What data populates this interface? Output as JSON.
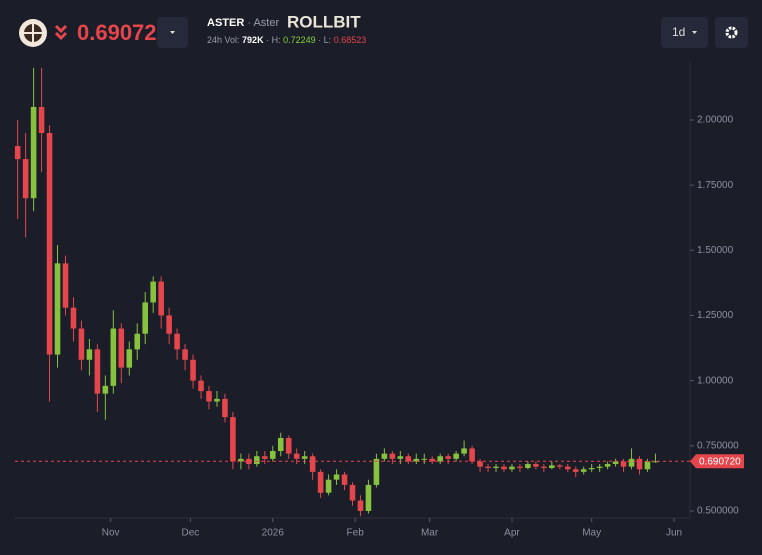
{
  "header": {
    "price": "0.69072",
    "symbol": "ASTER",
    "separator": "·",
    "name": "Aster",
    "brand": "ROLLBIT",
    "vol_label": "24h Vol:",
    "vol": "792K",
    "high_label": "· H:",
    "high": "0.72249",
    "low_label": "· L:",
    "low": "0.68523",
    "interval": "1d"
  },
  "chart_data": {
    "type": "candlestick",
    "x": [
      0,
      3,
      6,
      9,
      12,
      15,
      18,
      21,
      24,
      27,
      30,
      33,
      36,
      39,
      42,
      45,
      48,
      51,
      54,
      57,
      60,
      63,
      66,
      69,
      72,
      75,
      78,
      81,
      84,
      87,
      90,
      93,
      96,
      99,
      102,
      105,
      108,
      111,
      114,
      117,
      120,
      123,
      126,
      129,
      132,
      135,
      138,
      141,
      144,
      147,
      150,
      153,
      156,
      159,
      162,
      165,
      168,
      171,
      174,
      177,
      180,
      183,
      186,
      189,
      192,
      195,
      198,
      201,
      204,
      207,
      210,
      213,
      216,
      219,
      222,
      225,
      228,
      231,
      234,
      237,
      240
    ],
    "open": [
      1.9,
      1.85,
      1.7,
      2.05,
      1.95,
      1.1,
      1.45,
      1.28,
      1.2,
      1.08,
      1.12,
      0.95,
      0.98,
      1.2,
      1.05,
      1.12,
      1.18,
      1.3,
      1.38,
      1.25,
      1.18,
      1.12,
      1.08,
      1.0,
      0.96,
      0.92,
      0.93,
      0.86,
      0.69,
      0.7,
      0.68,
      0.71,
      0.7,
      0.73,
      0.78,
      0.72,
      0.7,
      0.71,
      0.65,
      0.57,
      0.62,
      0.64,
      0.6,
      0.54,
      0.5,
      0.6,
      0.7,
      0.72,
      0.7,
      0.71,
      0.69,
      0.7,
      0.7,
      0.69,
      0.71,
      0.7,
      0.72,
      0.74,
      0.69,
      0.67,
      0.665,
      0.67,
      0.66,
      0.67,
      0.665,
      0.68,
      0.67,
      0.665,
      0.675,
      0.67,
      0.66,
      0.65,
      0.66,
      0.665,
      0.67,
      0.68,
      0.69,
      0.67,
      0.7,
      0.66,
      0.69
    ],
    "high": [
      2.0,
      1.95,
      2.2,
      2.2,
      1.98,
      1.52,
      1.48,
      1.32,
      1.23,
      1.16,
      1.14,
      1.02,
      1.27,
      1.22,
      1.15,
      1.22,
      1.34,
      1.4,
      1.4,
      1.28,
      1.2,
      1.14,
      1.1,
      1.02,
      0.98,
      0.96,
      0.95,
      0.88,
      0.72,
      0.72,
      0.73,
      0.73,
      0.75,
      0.8,
      0.79,
      0.74,
      0.73,
      0.72,
      0.66,
      0.64,
      0.66,
      0.65,
      0.61,
      0.56,
      0.62,
      0.72,
      0.74,
      0.73,
      0.73,
      0.72,
      0.72,
      0.72,
      0.71,
      0.72,
      0.72,
      0.73,
      0.77,
      0.75,
      0.7,
      0.68,
      0.68,
      0.68,
      0.68,
      0.68,
      0.69,
      0.69,
      0.68,
      0.69,
      0.68,
      0.68,
      0.67,
      0.67,
      0.68,
      0.68,
      0.69,
      0.7,
      0.7,
      0.74,
      0.71,
      0.7,
      0.72
    ],
    "low": [
      1.62,
      1.55,
      1.65,
      1.8,
      0.92,
      1.05,
      1.25,
      1.15,
      1.04,
      1.02,
      0.88,
      0.85,
      0.95,
      0.99,
      1.02,
      1.08,
      1.14,
      1.26,
      1.2,
      1.14,
      1.08,
      1.04,
      0.97,
      0.93,
      0.89,
      0.9,
      0.84,
      0.66,
      0.66,
      0.66,
      0.67,
      0.68,
      0.69,
      0.71,
      0.7,
      0.68,
      0.68,
      0.62,
      0.55,
      0.56,
      0.6,
      0.58,
      0.52,
      0.48,
      0.49,
      0.59,
      0.69,
      0.68,
      0.68,
      0.68,
      0.68,
      0.68,
      0.68,
      0.68,
      0.68,
      0.69,
      0.71,
      0.68,
      0.65,
      0.65,
      0.65,
      0.65,
      0.65,
      0.65,
      0.66,
      0.66,
      0.65,
      0.66,
      0.66,
      0.65,
      0.63,
      0.64,
      0.65,
      0.65,
      0.66,
      0.67,
      0.65,
      0.66,
      0.64,
      0.65,
      0.685
    ],
    "close": [
      1.85,
      1.7,
      2.05,
      1.95,
      1.1,
      1.45,
      1.28,
      1.2,
      1.08,
      1.12,
      0.95,
      0.98,
      1.2,
      1.05,
      1.12,
      1.18,
      1.3,
      1.38,
      1.25,
      1.18,
      1.12,
      1.08,
      1.0,
      0.96,
      0.92,
      0.93,
      0.86,
      0.69,
      0.7,
      0.68,
      0.71,
      0.7,
      0.73,
      0.78,
      0.72,
      0.7,
      0.71,
      0.65,
      0.57,
      0.62,
      0.64,
      0.6,
      0.54,
      0.5,
      0.6,
      0.7,
      0.72,
      0.7,
      0.71,
      0.69,
      0.7,
      0.7,
      0.69,
      0.71,
      0.7,
      0.72,
      0.74,
      0.69,
      0.67,
      0.665,
      0.67,
      0.66,
      0.67,
      0.665,
      0.68,
      0.67,
      0.665,
      0.675,
      0.67,
      0.66,
      0.65,
      0.66,
      0.665,
      0.67,
      0.68,
      0.69,
      0.67,
      0.7,
      0.66,
      0.69,
      0.6907
    ],
    "up_color": "#86c23e",
    "down_color": "#e5464c",
    "xlim": [
      -1,
      253
    ],
    "ylim": [
      0.473,
      2.211
    ],
    "xticks": [
      {
        "value": 35,
        "label": "Nov"
      },
      {
        "value": 65,
        "label": "Dec"
      },
      {
        "value": 96,
        "label": "2026"
      },
      {
        "value": 127,
        "label": "Feb"
      },
      {
        "value": 155,
        "label": "Mar"
      },
      {
        "value": 186,
        "label": "Apr"
      },
      {
        "value": 216,
        "label": "May"
      },
      {
        "value": 247,
        "label": "Jun"
      }
    ],
    "yticks": [
      {
        "value": 0.5,
        "label": "0.500000"
      },
      {
        "value": 0.75,
        "label": "0.750000"
      },
      {
        "value": 1,
        "label": "1.00000"
      },
      {
        "value": 1.25,
        "label": "1.25000"
      },
      {
        "value": 1.5,
        "label": "1.50000"
      },
      {
        "value": 1.75,
        "label": "1.75000"
      },
      {
        "value": 2,
        "label": "2.00000"
      }
    ],
    "price_line": {
      "value": 0.69072,
      "label": "0.690720"
    }
  }
}
